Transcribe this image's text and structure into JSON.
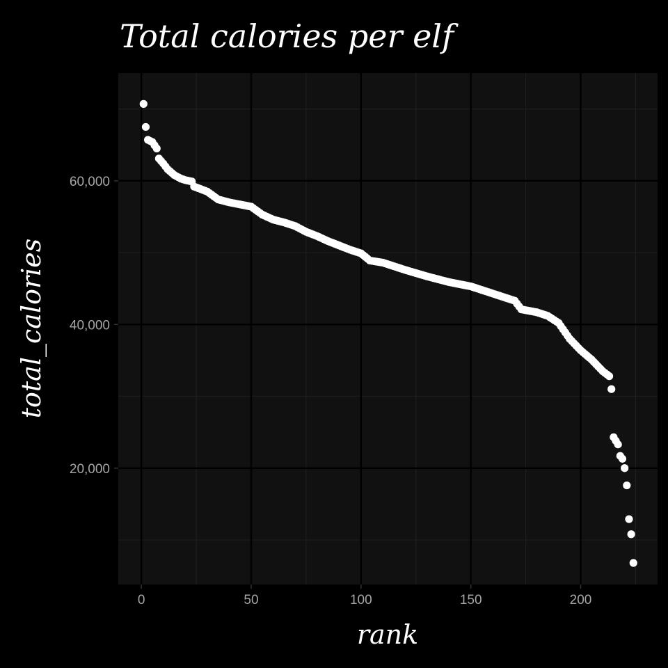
{
  "colors": {
    "background": "#000000",
    "panel": "#111111",
    "grid_major": "#000000",
    "grid_minor": "#1e1e1e",
    "points": "#ffffff",
    "text": "#ffffff",
    "tick_text": "#a6a6a6"
  },
  "chart_data": {
    "type": "scatter",
    "title": "Total calories per elf",
    "xlabel": "rank",
    "ylabel": "total_calories",
    "xlim": [
      -10.5,
      235
    ],
    "ylim": [
      3800,
      75000
    ],
    "x_ticks": [
      0,
      50,
      100,
      150,
      200
    ],
    "x_tick_labels": [
      "0",
      "50",
      "100",
      "150",
      "200"
    ],
    "y_ticks": [
      20000,
      40000,
      60000
    ],
    "y_tick_labels": [
      "20,000",
      "40,000",
      "60,000"
    ],
    "grid": true,
    "legend": "none",
    "anchors": [
      [
        1,
        70700
      ],
      [
        2,
        67500
      ],
      [
        3,
        65700
      ],
      [
        5,
        65400
      ],
      [
        7,
        64500
      ],
      [
        8,
        63100
      ],
      [
        10,
        62400
      ],
      [
        12,
        61600
      ],
      [
        15,
        60800
      ],
      [
        18,
        60300
      ],
      [
        20,
        60100
      ],
      [
        23,
        59900
      ],
      [
        24,
        59200
      ],
      [
        30,
        58500
      ],
      [
        35,
        57400
      ],
      [
        40,
        57000
      ],
      [
        45,
        56700
      ],
      [
        50,
        56400
      ],
      [
        55,
        55300
      ],
      [
        60,
        54600
      ],
      [
        65,
        54200
      ],
      [
        70,
        53700
      ],
      [
        75,
        52900
      ],
      [
        80,
        52300
      ],
      [
        85,
        51600
      ],
      [
        90,
        51000
      ],
      [
        95,
        50400
      ],
      [
        100,
        49900
      ],
      [
        104,
        48900
      ],
      [
        110,
        48600
      ],
      [
        120,
        47600
      ],
      [
        130,
        46700
      ],
      [
        140,
        45900
      ],
      [
        150,
        45300
      ],
      [
        160,
        44300
      ],
      [
        170,
        43300
      ],
      [
        173,
        42100
      ],
      [
        180,
        41700
      ],
      [
        185,
        41200
      ],
      [
        190,
        40200
      ],
      [
        195,
        38000
      ],
      [
        200,
        36400
      ],
      [
        205,
        35100
      ],
      [
        210,
        33500
      ],
      [
        213,
        32800
      ]
    ],
    "tail_points": [
      [
        214,
        31000
      ],
      [
        215,
        24300
      ],
      [
        216,
        23800
      ],
      [
        217,
        23300
      ],
      [
        218,
        21700
      ],
      [
        219,
        21300
      ],
      [
        220,
        20000
      ],
      [
        221,
        17600
      ],
      [
        222,
        12900
      ],
      [
        223,
        10800
      ],
      [
        224,
        6800
      ]
    ]
  }
}
